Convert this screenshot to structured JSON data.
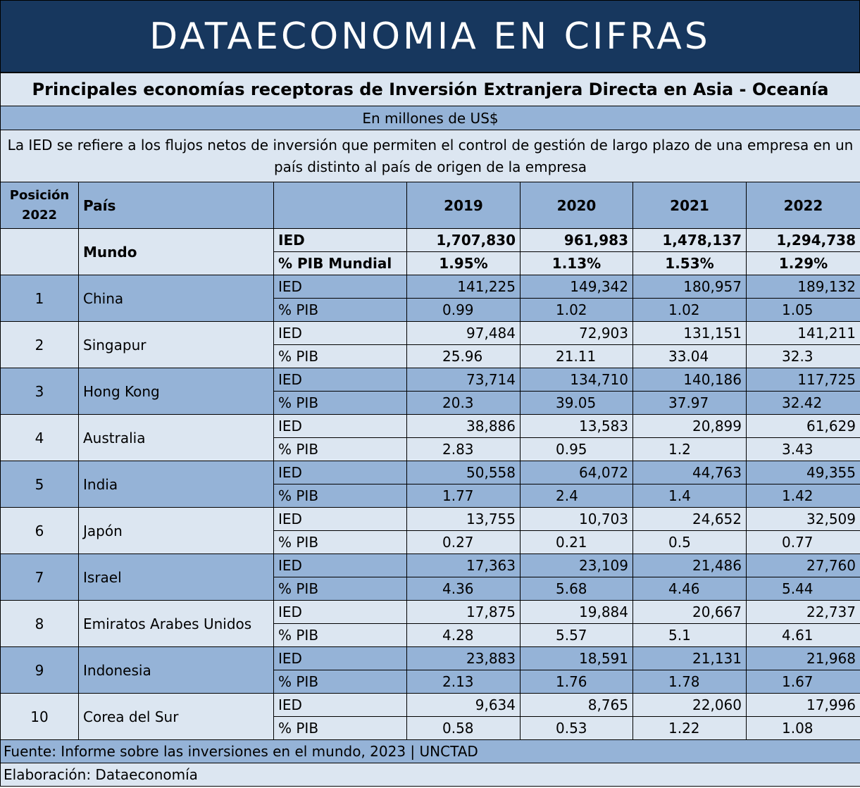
{
  "banner": "DATAECONOMIA EN CIFRAS",
  "title": "Principales economías receptoras de Inversión Extranjera Directa en Asia - Oceanía",
  "unit": "En millones de US$",
  "description": "La IED se refiere a los flujos netos de inversión que permiten el control de gestión de largo plazo de una empresa en un país distinto al país de origen de la empresa",
  "header": {
    "position_line1": "Posición",
    "position_line2": "2022",
    "country": "País",
    "years": [
      "2019",
      "2020",
      "2021",
      "2022"
    ]
  },
  "world": {
    "name": "Mundo",
    "ied_label": "IED",
    "pib_label": "% PIB Mundial",
    "ied": [
      "1,707,830",
      "961,983",
      "1,478,137",
      "1,294,738"
    ],
    "pib": [
      "1.95%",
      "1.13%",
      "1.53%",
      "1.29%"
    ]
  },
  "metric_labels": {
    "ied": "IED",
    "pib": "% PIB"
  },
  "rows": [
    {
      "pos": "1",
      "country": "China",
      "ied": [
        "141,225",
        "149,342",
        "180,957",
        "189,132"
      ],
      "pib": [
        "0.99",
        "1.02",
        "1.02",
        "1.05"
      ]
    },
    {
      "pos": "2",
      "country": "Singapur",
      "ied": [
        "97,484",
        "72,903",
        "131,151",
        "141,211"
      ],
      "pib": [
        "25.96",
        "21.11",
        "33.04",
        "32.3"
      ]
    },
    {
      "pos": "3",
      "country": "Hong Kong",
      "ied": [
        "73,714",
        "134,710",
        "140,186",
        "117,725"
      ],
      "pib": [
        "20.3",
        "39.05",
        "37.97",
        "32.42"
      ]
    },
    {
      "pos": "4",
      "country": "Australia",
      "ied": [
        "38,886",
        "13,583",
        "20,899",
        "61,629"
      ],
      "pib": [
        "2.83",
        "0.95",
        "1.2",
        "3.43"
      ]
    },
    {
      "pos": "5",
      "country": "India",
      "ied": [
        "50,558",
        "64,072",
        "44,763",
        "49,355"
      ],
      "pib": [
        "1.77",
        "2.4",
        "1.4",
        "1.42"
      ]
    },
    {
      "pos": "6",
      "country": "Japón",
      "ied": [
        "13,755",
        "10,703",
        "24,652",
        "32,509"
      ],
      "pib": [
        "0.27",
        "0.21",
        "0.5",
        "0.77"
      ]
    },
    {
      "pos": "7",
      "country": "Israel",
      "ied": [
        "17,363",
        "23,109",
        "21,486",
        "27,760"
      ],
      "pib": [
        "4.36",
        "5.68",
        "4.46",
        "5.44"
      ]
    },
    {
      "pos": "8",
      "country": "Emiratos Arabes Unidos",
      "ied": [
        "17,875",
        "19,884",
        "20,667",
        "22,737"
      ],
      "pib": [
        "4.28",
        "5.57",
        "5.1",
        "4.61"
      ]
    },
    {
      "pos": "9",
      "country": "Indonesia",
      "ied": [
        "23,883",
        "18,591",
        "21,131",
        "21,968"
      ],
      "pib": [
        "2.13",
        "1.76",
        "1.78",
        "1.67"
      ]
    },
    {
      "pos": "10",
      "country": "Corea del Sur",
      "ied": [
        "9,634",
        "8,765",
        "22,060",
        "17,996"
      ],
      "pib": [
        "0.58",
        "0.53",
        "1.22",
        "1.08"
      ]
    }
  ],
  "source": "Fuente: Informe sobre las inversiones en el mundo, 2023 | UNCTAD",
  "credit": "Elaboración: Dataeconomía",
  "colors": {
    "banner": "#17375e",
    "dark_row": "#95b3d7",
    "light_row": "#dce6f1"
  }
}
